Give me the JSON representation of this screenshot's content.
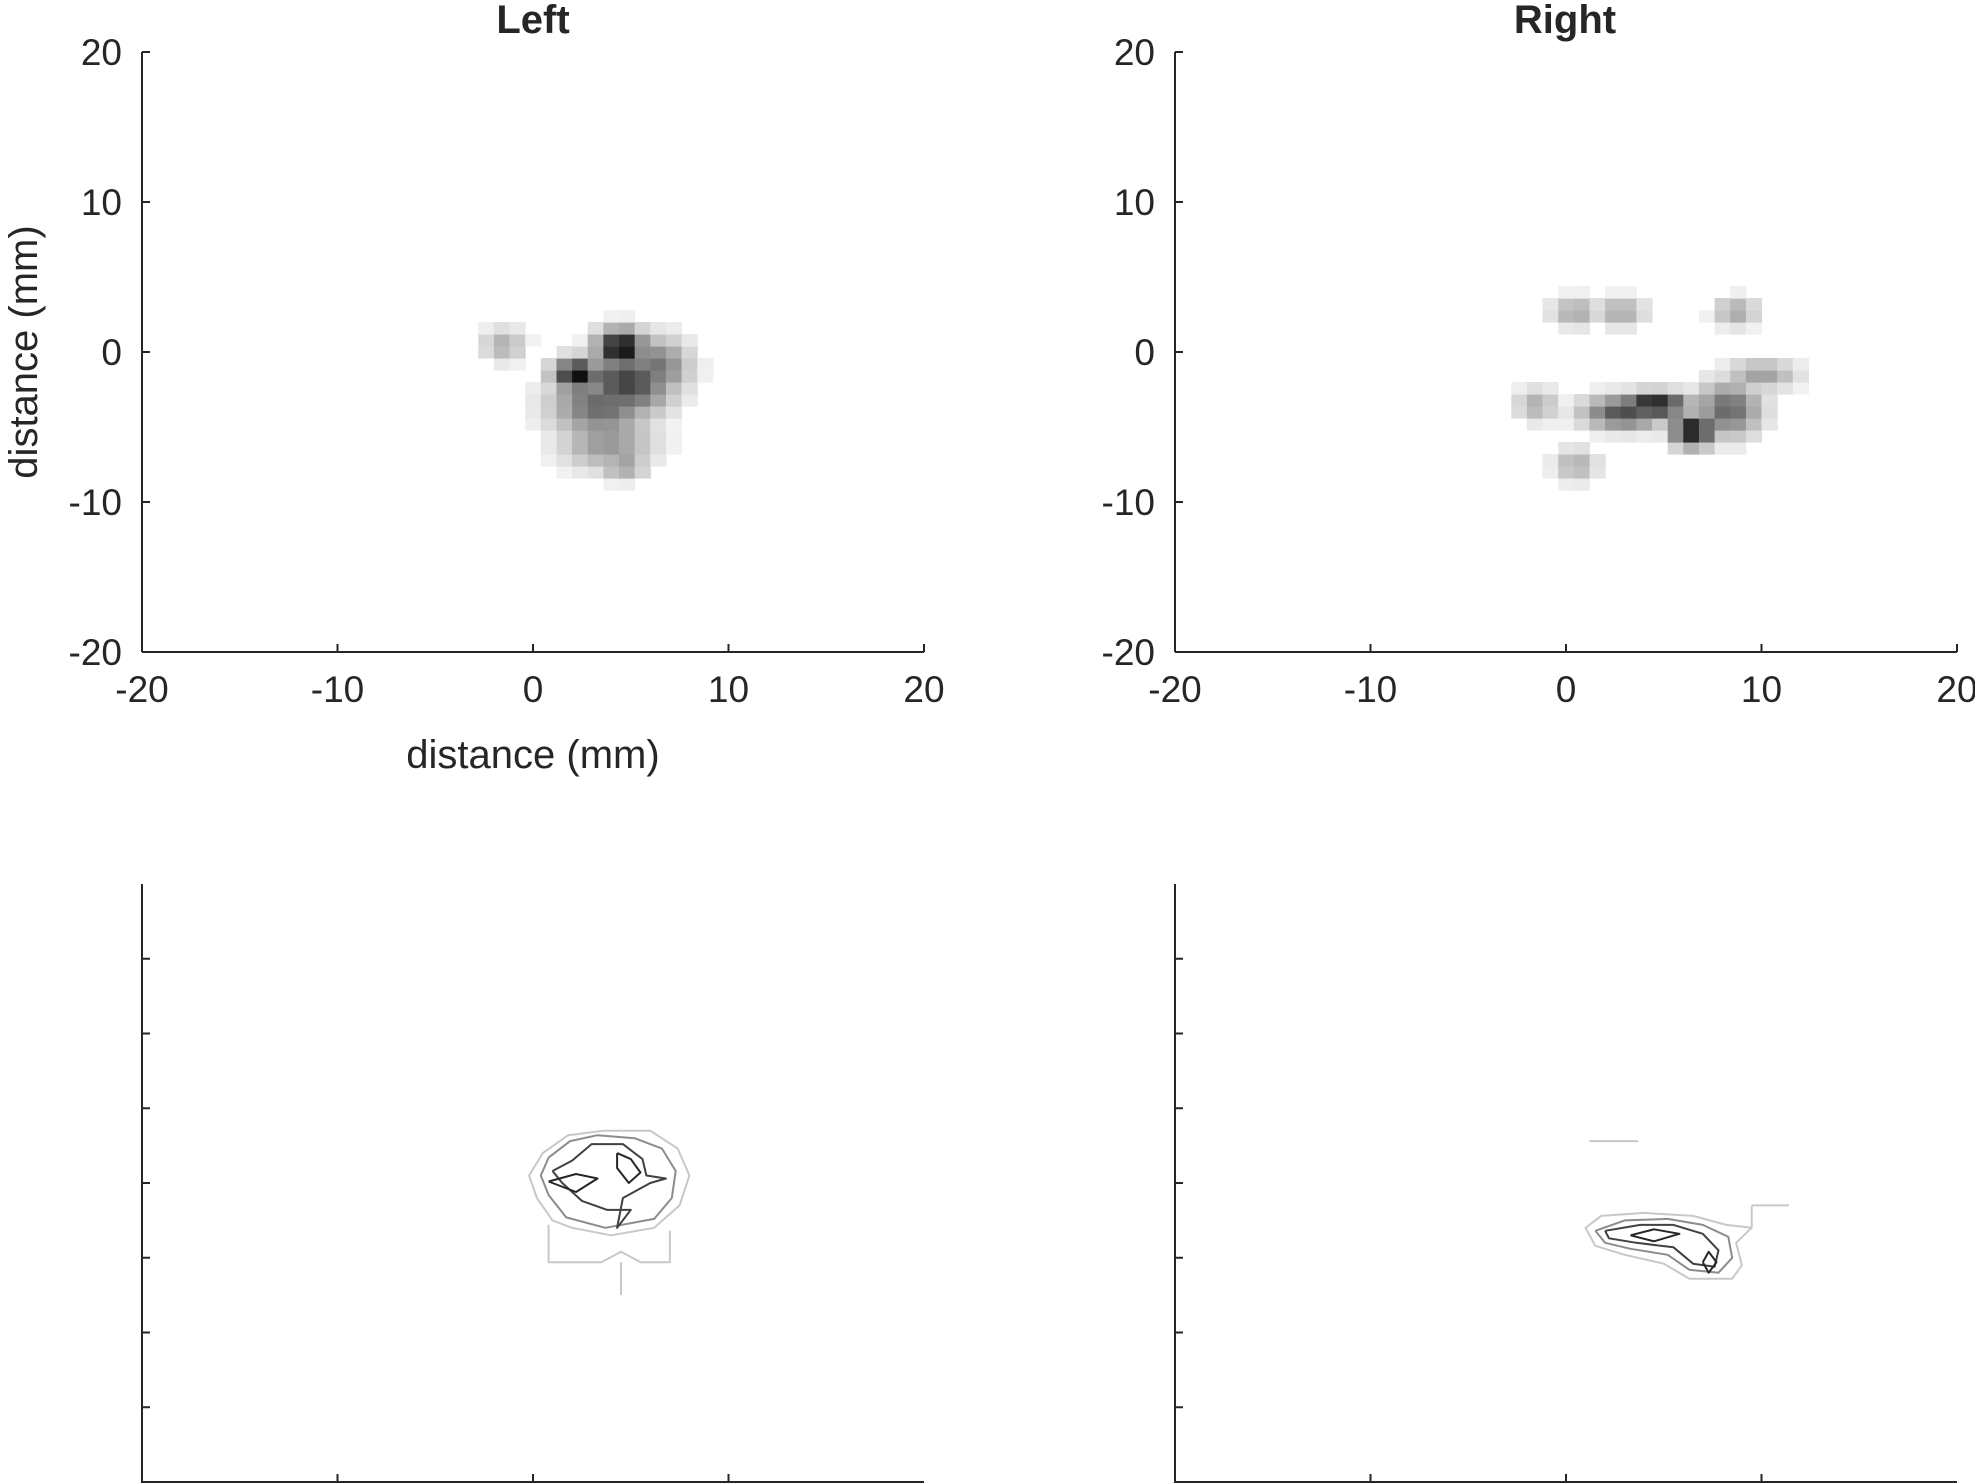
{
  "chart_data": [
    {
      "type": "heatmap",
      "title": "Left",
      "xlabel": "distance (mm)",
      "ylabel": "distance (mm)",
      "xlim": [
        -20,
        20
      ],
      "ylim": [
        -20,
        20
      ],
      "xticks": [
        -20,
        -10,
        0,
        10,
        20
      ],
      "yticks": [
        -20,
        -10,
        0,
        10,
        20
      ],
      "colormap": "gray-inverted",
      "blobs": [
        {
          "x": 4.5,
          "y": 0.3,
          "sx": 0.9,
          "sy": 0.9,
          "intensity": 1.0
        },
        {
          "x": 2.3,
          "y": -1.5,
          "sx": 0.9,
          "sy": 0.8,
          "intensity": 0.95
        },
        {
          "x": 4.8,
          "y": -2.0,
          "sx": 1.6,
          "sy": 1.6,
          "intensity": 0.75
        },
        {
          "x": 3.5,
          "y": -3.5,
          "sx": 1.8,
          "sy": 1.6,
          "intensity": 0.6
        },
        {
          "x": 6.3,
          "y": -1.0,
          "sx": 1.2,
          "sy": 1.4,
          "intensity": 0.55
        },
        {
          "x": 3.8,
          "y": -6.0,
          "sx": 1.7,
          "sy": 1.3,
          "intensity": 0.42
        },
        {
          "x": 4.6,
          "y": -7.5,
          "sx": 0.9,
          "sy": 0.7,
          "intensity": 0.4
        },
        {
          "x": -1.5,
          "y": 0.5,
          "sx": 0.8,
          "sy": 0.8,
          "intensity": 0.32
        }
      ]
    },
    {
      "type": "heatmap",
      "title": "Right",
      "xlabel": "",
      "ylabel": "",
      "xlim": [
        -20,
        20
      ],
      "ylim": [
        -20,
        20
      ],
      "xticks": [
        -20,
        -10,
        0,
        10,
        20
      ],
      "yticks": [
        -20,
        -10,
        0,
        10,
        20
      ],
      "colormap": "gray-inverted",
      "blobs": [
        {
          "x": 4.5,
          "y": -3.5,
          "sx": 1.3,
          "sy": 0.6,
          "intensity": 0.95
        },
        {
          "x": 6.5,
          "y": -5.2,
          "sx": 0.8,
          "sy": 0.8,
          "intensity": 0.95
        },
        {
          "x": 3.0,
          "y": -4.0,
          "sx": 1.5,
          "sy": 0.8,
          "intensity": 0.7
        },
        {
          "x": 8.3,
          "y": -3.8,
          "sx": 1.2,
          "sy": 1.3,
          "intensity": 0.6
        },
        {
          "x": 10.0,
          "y": -1.5,
          "sx": 1.3,
          "sy": 0.7,
          "intensity": 0.38
        },
        {
          "x": 0.5,
          "y": 2.7,
          "sx": 0.9,
          "sy": 0.7,
          "intensity": 0.35
        },
        {
          "x": 2.8,
          "y": 2.7,
          "sx": 0.9,
          "sy": 0.7,
          "intensity": 0.35
        },
        {
          "x": 8.7,
          "y": 2.7,
          "sx": 0.8,
          "sy": 0.7,
          "intensity": 0.35
        },
        {
          "x": -1.5,
          "y": -3.5,
          "sx": 0.8,
          "sy": 0.8,
          "intensity": 0.32
        },
        {
          "x": 0.5,
          "y": -7.5,
          "sx": 0.8,
          "sy": 0.8,
          "intensity": 0.32
        }
      ]
    },
    {
      "type": "contour",
      "title": "",
      "xlabel": "",
      "ylabel": "",
      "xlim": [
        -20,
        20
      ],
      "ylim": [
        -20,
        20
      ],
      "xticks": [
        -10,
        0,
        10
      ],
      "yticks": [
        -15,
        -10,
        -5,
        0,
        5,
        10,
        15
      ],
      "tick_labels_visible": false,
      "contours": [
        {
          "level": "low",
          "color": "#c8c8c8",
          "points": [
            [
              3.6,
              3.5
            ],
            [
              1.8,
              3.2
            ],
            [
              0.5,
              2.0
            ],
            [
              -0.2,
              0.5
            ],
            [
              0.2,
              -1.0
            ],
            [
              1.0,
              -2.5
            ],
            [
              2.0,
              -3.0
            ],
            [
              4.0,
              -3.5
            ],
            [
              6.2,
              -3.0
            ],
            [
              7.5,
              -1.5
            ],
            [
              8.0,
              0.5
            ],
            [
              7.4,
              2.3
            ],
            [
              6.0,
              3.5
            ],
            [
              3.6,
              3.5
            ]
          ]
        },
        {
          "level": "low",
          "color": "#c8c8c8",
          "points": [
            [
              0.8,
              -2.8
            ],
            [
              0.8,
              -5.3
            ],
            [
              3.5,
              -5.3
            ],
            [
              4.5,
              -4.6
            ],
            [
              5.5,
              -5.3
            ],
            [
              7.0,
              -5.3
            ],
            [
              7.0,
              -3.2
            ]
          ]
        },
        {
          "level": "low",
          "color": "#c8c8c8",
          "points": [
            [
              4.5,
              -5.3
            ],
            [
              4.5,
              -7.5
            ]
          ]
        },
        {
          "level": "mid",
          "color": "#8c8c8c",
          "points": [
            [
              3.3,
              3.2
            ],
            [
              1.9,
              2.8
            ],
            [
              0.8,
              1.7
            ],
            [
              0.4,
              0.5
            ],
            [
              0.8,
              -0.8
            ],
            [
              1.7,
              -2.3
            ],
            [
              3.7,
              -3.0
            ],
            [
              6.2,
              -2.4
            ],
            [
              7.1,
              -1.0
            ],
            [
              7.3,
              0.8
            ],
            [
              6.6,
              2.3
            ],
            [
              5.2,
              3.0
            ],
            [
              3.3,
              3.2
            ]
          ]
        },
        {
          "level": "high",
          "color": "#404040",
          "points": [
            [
              1.0,
              0.8
            ],
            [
              1.5,
              0.0
            ],
            [
              2.5,
              -1.2
            ],
            [
              3.8,
              -1.8
            ],
            [
              5.0,
              -1.8
            ],
            [
              4.3,
              -3.0
            ],
            [
              4.6,
              -1.0
            ],
            [
              6.0,
              0.0
            ],
            [
              6.8,
              0.3
            ],
            [
              5.8,
              0.5
            ],
            [
              5.6,
              1.6
            ],
            [
              4.6,
              2.6
            ],
            [
              3.0,
              2.6
            ],
            [
              2.0,
              1.5
            ],
            [
              1.0,
              0.8
            ]
          ]
        },
        {
          "level": "top",
          "color": "#262626",
          "points": [
            [
              0.8,
              0.1
            ],
            [
              2.2,
              0.6
            ],
            [
              3.3,
              0.3
            ],
            [
              2.2,
              -0.6
            ],
            [
              0.8,
              0.1
            ]
          ]
        },
        {
          "level": "top",
          "color": "#262626",
          "points": [
            [
              4.3,
              2.0
            ],
            [
              5.0,
              1.6
            ],
            [
              5.5,
              0.7
            ],
            [
              4.9,
              0.0
            ],
            [
              4.3,
              1.0
            ],
            [
              4.3,
              2.0
            ]
          ]
        }
      ]
    },
    {
      "type": "contour",
      "title": "",
      "xlabel": "",
      "ylabel": "",
      "xlim": [
        -20,
        20
      ],
      "ylim": [
        -20,
        20
      ],
      "xticks": [
        -10,
        0,
        10
      ],
      "yticks": [
        -15,
        -10,
        -5,
        0,
        5,
        10,
        15
      ],
      "tick_labels_visible": false,
      "contours": [
        {
          "level": "low",
          "color": "#c8c8c8",
          "points": [
            [
              1.2,
              2.8
            ],
            [
              3.7,
              2.8
            ]
          ]
        },
        {
          "level": "low",
          "color": "#c8c8c8",
          "points": [
            [
              9.5,
              -1.5
            ],
            [
              11.4,
              -1.5
            ]
          ]
        },
        {
          "level": "low",
          "color": "#c8c8c8",
          "points": [
            [
              9.5,
              -1.5
            ],
            [
              9.5,
              -3.0
            ],
            [
              8.7,
              -4.0
            ],
            [
              9.0,
              -5.5
            ],
            [
              8.5,
              -6.4
            ],
            [
              6.3,
              -6.4
            ],
            [
              5.0,
              -5.4
            ],
            [
              3.0,
              -4.8
            ],
            [
              1.5,
              -4.2
            ],
            [
              1.0,
              -3.0
            ],
            [
              1.8,
              -2.2
            ],
            [
              4.0,
              -2.0
            ],
            [
              6.5,
              -2.2
            ],
            [
              8.2,
              -2.8
            ],
            [
              9.5,
              -3.0
            ]
          ]
        },
        {
          "level": "mid",
          "color": "#8c8c8c",
          "points": [
            [
              1.5,
              -3.2
            ],
            [
              3.0,
              -2.5
            ],
            [
              5.2,
              -2.4
            ],
            [
              7.0,
              -2.8
            ],
            [
              8.3,
              -3.6
            ],
            [
              8.5,
              -5.0
            ],
            [
              7.8,
              -6.0
            ],
            [
              6.3,
              -5.8
            ],
            [
              5.2,
              -4.8
            ],
            [
              3.3,
              -4.4
            ],
            [
              2.0,
              -4.0
            ],
            [
              1.5,
              -3.2
            ]
          ]
        },
        {
          "level": "high",
          "color": "#404040",
          "points": [
            [
              2.0,
              -3.2
            ],
            [
              3.8,
              -2.8
            ],
            [
              5.5,
              -2.8
            ],
            [
              7.0,
              -3.4
            ],
            [
              7.8,
              -4.5
            ],
            [
              7.6,
              -5.6
            ],
            [
              6.5,
              -5.4
            ],
            [
              5.5,
              -4.3
            ],
            [
              3.6,
              -4.0
            ],
            [
              2.2,
              -3.7
            ],
            [
              2.0,
              -3.2
            ]
          ]
        },
        {
          "level": "top",
          "color": "#262626",
          "points": [
            [
              3.3,
              -3.5
            ],
            [
              4.5,
              -3.1
            ],
            [
              5.8,
              -3.4
            ],
            [
              4.5,
              -3.9
            ],
            [
              3.3,
              -3.5
            ]
          ]
        },
        {
          "level": "top",
          "color": "#262626",
          "points": [
            [
              7.0,
              -5.3
            ],
            [
              7.3,
              -4.6
            ],
            [
              7.7,
              -5.3
            ],
            [
              7.3,
              -6.0
            ],
            [
              7.0,
              -5.3
            ]
          ]
        }
      ]
    }
  ]
}
